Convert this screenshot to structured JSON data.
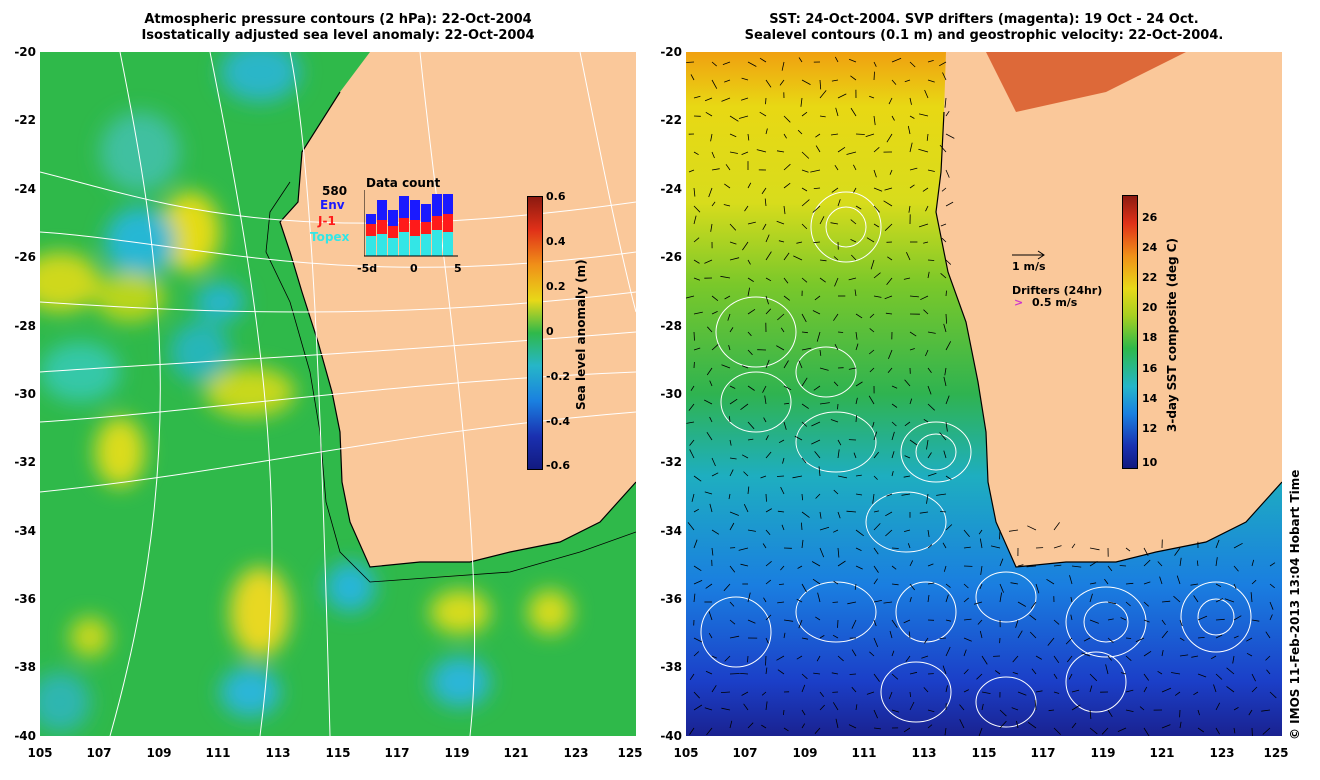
{
  "left_panel": {
    "title_line1": "Atmospheric pressure contours (2 hPa): 22-Oct-2004",
    "title_line2": "Isostatically adjusted sea level anomaly: 22-Oct-2004",
    "colorbar_label": "Sea level anomaly (m)",
    "colorbar_ticks": [
      "0.6",
      "0.4",
      "0.2",
      "0",
      "-0.2",
      "-0.4",
      "-0.6"
    ],
    "inset": {
      "title": "Data count",
      "count": "580",
      "legend": [
        {
          "label": "Env",
          "color": "#1a1aff"
        },
        {
          "label": "J-1",
          "color": "#ff1a1a"
        },
        {
          "label": "Topex",
          "color": "#33e6e6"
        }
      ],
      "x_ticks": [
        "-5d",
        "0",
        "5"
      ]
    }
  },
  "right_panel": {
    "title_line1": "SST: 24-Oct-2004. SVP drifters (magenta): 19 Oct - 24 Oct.",
    "title_line2": "Sealevel contours (0.1 m) and geostrophic velocity: 22-Oct-2004.",
    "colorbar_label": "3-day SST composite (deg C)",
    "colorbar_ticks": [
      "26",
      "24",
      "22",
      "20",
      "18",
      "16",
      "14",
      "12",
      "10"
    ],
    "velocity_scale_label": "1 m/s",
    "drifters_label": "Drifters (24hr)",
    "drifters_scale_label": "0.5 m/s",
    "drifters_color": "#cc33cc"
  },
  "axes": {
    "lat_ticks": [
      "-20",
      "-22",
      "-24",
      "-26",
      "-28",
      "-30",
      "-32",
      "-34",
      "-36",
      "-38",
      "-40"
    ],
    "lon_ticks": [
      "105",
      "107",
      "109",
      "111",
      "113",
      "115",
      "117",
      "119",
      "121",
      "123",
      "125"
    ]
  },
  "credit": "© IMOS 11-Feb-2013 13:04 Hobart Time",
  "colors": {
    "land": "#fac89a",
    "ocean_mid": "#33bb33"
  }
}
